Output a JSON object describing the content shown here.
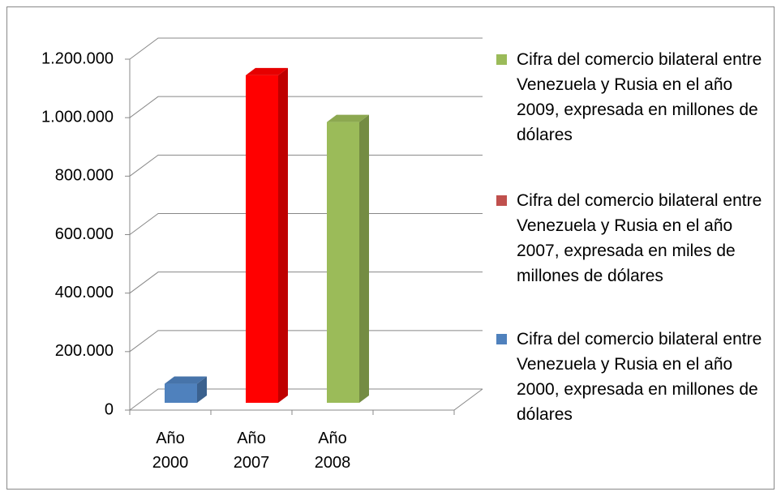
{
  "chart_data": {
    "type": "bar3d",
    "categories": [
      "Año 2000",
      "Año 2007",
      "Año 2008",
      null
    ],
    "series": [
      {
        "name": "Cifra del comercio bilateral entre Venezuela y Rusia en el año 2009, expresada en millones de dólares",
        "color": "#9bbb59",
        "values": [
          null,
          null,
          960000,
          null
        ]
      },
      {
        "name": "Cifra del comercio bilateral entre Venezuela y Rusia en el año 2007, expresada en miles de millones de dólares",
        "color": "#ff0000",
        "legend_color": "#c0504d",
        "values": [
          null,
          1120000,
          null,
          null
        ]
      },
      {
        "name": "Cifra del comercio bilateral entre Venezuela y Rusia en el año 2000, expresada en millones de dólares",
        "color": "#4f81bd",
        "values": [
          65000,
          null,
          null,
          null
        ]
      }
    ],
    "ylim": [
      0,
      1200000
    ],
    "yticks": [
      0,
      {
        "value": 200000,
        "label": "200.000"
      },
      {
        "value": 400000,
        "label": "400.000"
      },
      {
        "value": 600000,
        "label": "600.000"
      },
      {
        "value": 800000,
        "label": "800.000"
      },
      {
        "value": 1000000,
        "label": "1.000.000"
      },
      {
        "value": 1200000,
        "label": "1.200.000"
      }
    ],
    "grid": true,
    "legend": "right"
  }
}
